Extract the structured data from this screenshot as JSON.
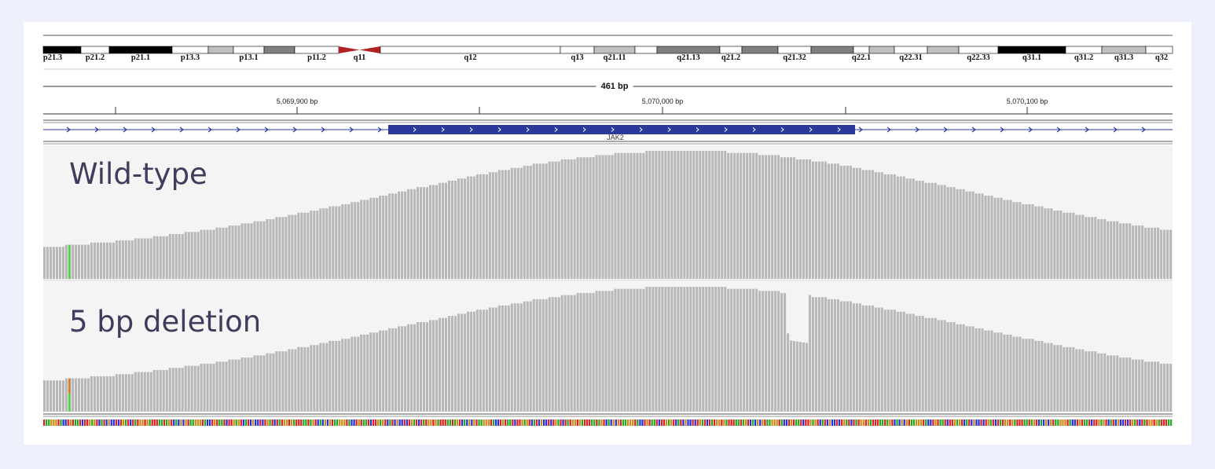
{
  "ideogram": {
    "bands": [
      {
        "label": "p21.3",
        "color": "#000000"
      },
      {
        "label": "p21.2",
        "color": "#ffffff"
      },
      {
        "label": "p21.1",
        "color": "#000000"
      },
      {
        "label": "p13.3",
        "color": "#ffffff"
      },
      {
        "label": "",
        "color": "#c0c0c0"
      },
      {
        "label": "p13.1",
        "color": "#ffffff"
      },
      {
        "label": "",
        "color": "#808080"
      },
      {
        "label": "p11.2",
        "color": "#ffffff"
      },
      {
        "label": "q11",
        "color": "#b22222"
      },
      {
        "label": "q12",
        "color": "#ffffff"
      },
      {
        "label": "q13",
        "color": "#ffffff"
      },
      {
        "label": "q21.11",
        "color": "#c0c0c0"
      },
      {
        "label": "",
        "color": "#ffffff"
      },
      {
        "label": "q21.13",
        "color": "#808080"
      },
      {
        "label": "q21.2",
        "color": "#ffffff"
      },
      {
        "label": "",
        "color": "#808080"
      },
      {
        "label": "q21.32",
        "color": "#ffffff"
      },
      {
        "label": "",
        "color": "#808080"
      },
      {
        "label": "q22.1",
        "color": "#ffffff"
      },
      {
        "label": "",
        "color": "#c0c0c0"
      },
      {
        "label": "q22.31",
        "color": "#ffffff"
      },
      {
        "label": "",
        "color": "#c0c0c0"
      },
      {
        "label": "q22.33",
        "color": "#ffffff"
      },
      {
        "label": "q31.1",
        "color": "#000000"
      },
      {
        "label": "q31.2",
        "color": "#ffffff"
      },
      {
        "label": "q31.3",
        "color": "#c0c0c0"
      },
      {
        "label": "q32",
        "color": "#ffffff"
      }
    ]
  },
  "ruler": {
    "span_label": "461 bp",
    "positions": [
      "5,069,900 bp",
      "5,070,000 bp",
      "5,070,100 bp"
    ]
  },
  "gene": {
    "name": "JAK2",
    "strand_color": "#2b3a9a"
  },
  "tracks": [
    {
      "title": "Wild-type",
      "deletion": false
    },
    {
      "title": "5 bp deletion",
      "deletion": true
    }
  ],
  "colors": {
    "coverage": "#b8b8b8",
    "mismatch_green": "#5ad14a",
    "mismatch_orange": "#d4813a",
    "title_text": "#3f3d5c",
    "background": "#edf0fa"
  },
  "sequence": {
    "bases": [
      "A",
      "C",
      "G",
      "T"
    ],
    "colors": {
      "A": "#22aa22",
      "C": "#2233dd",
      "G": "#d08a1a",
      "T": "#dd2222"
    }
  }
}
